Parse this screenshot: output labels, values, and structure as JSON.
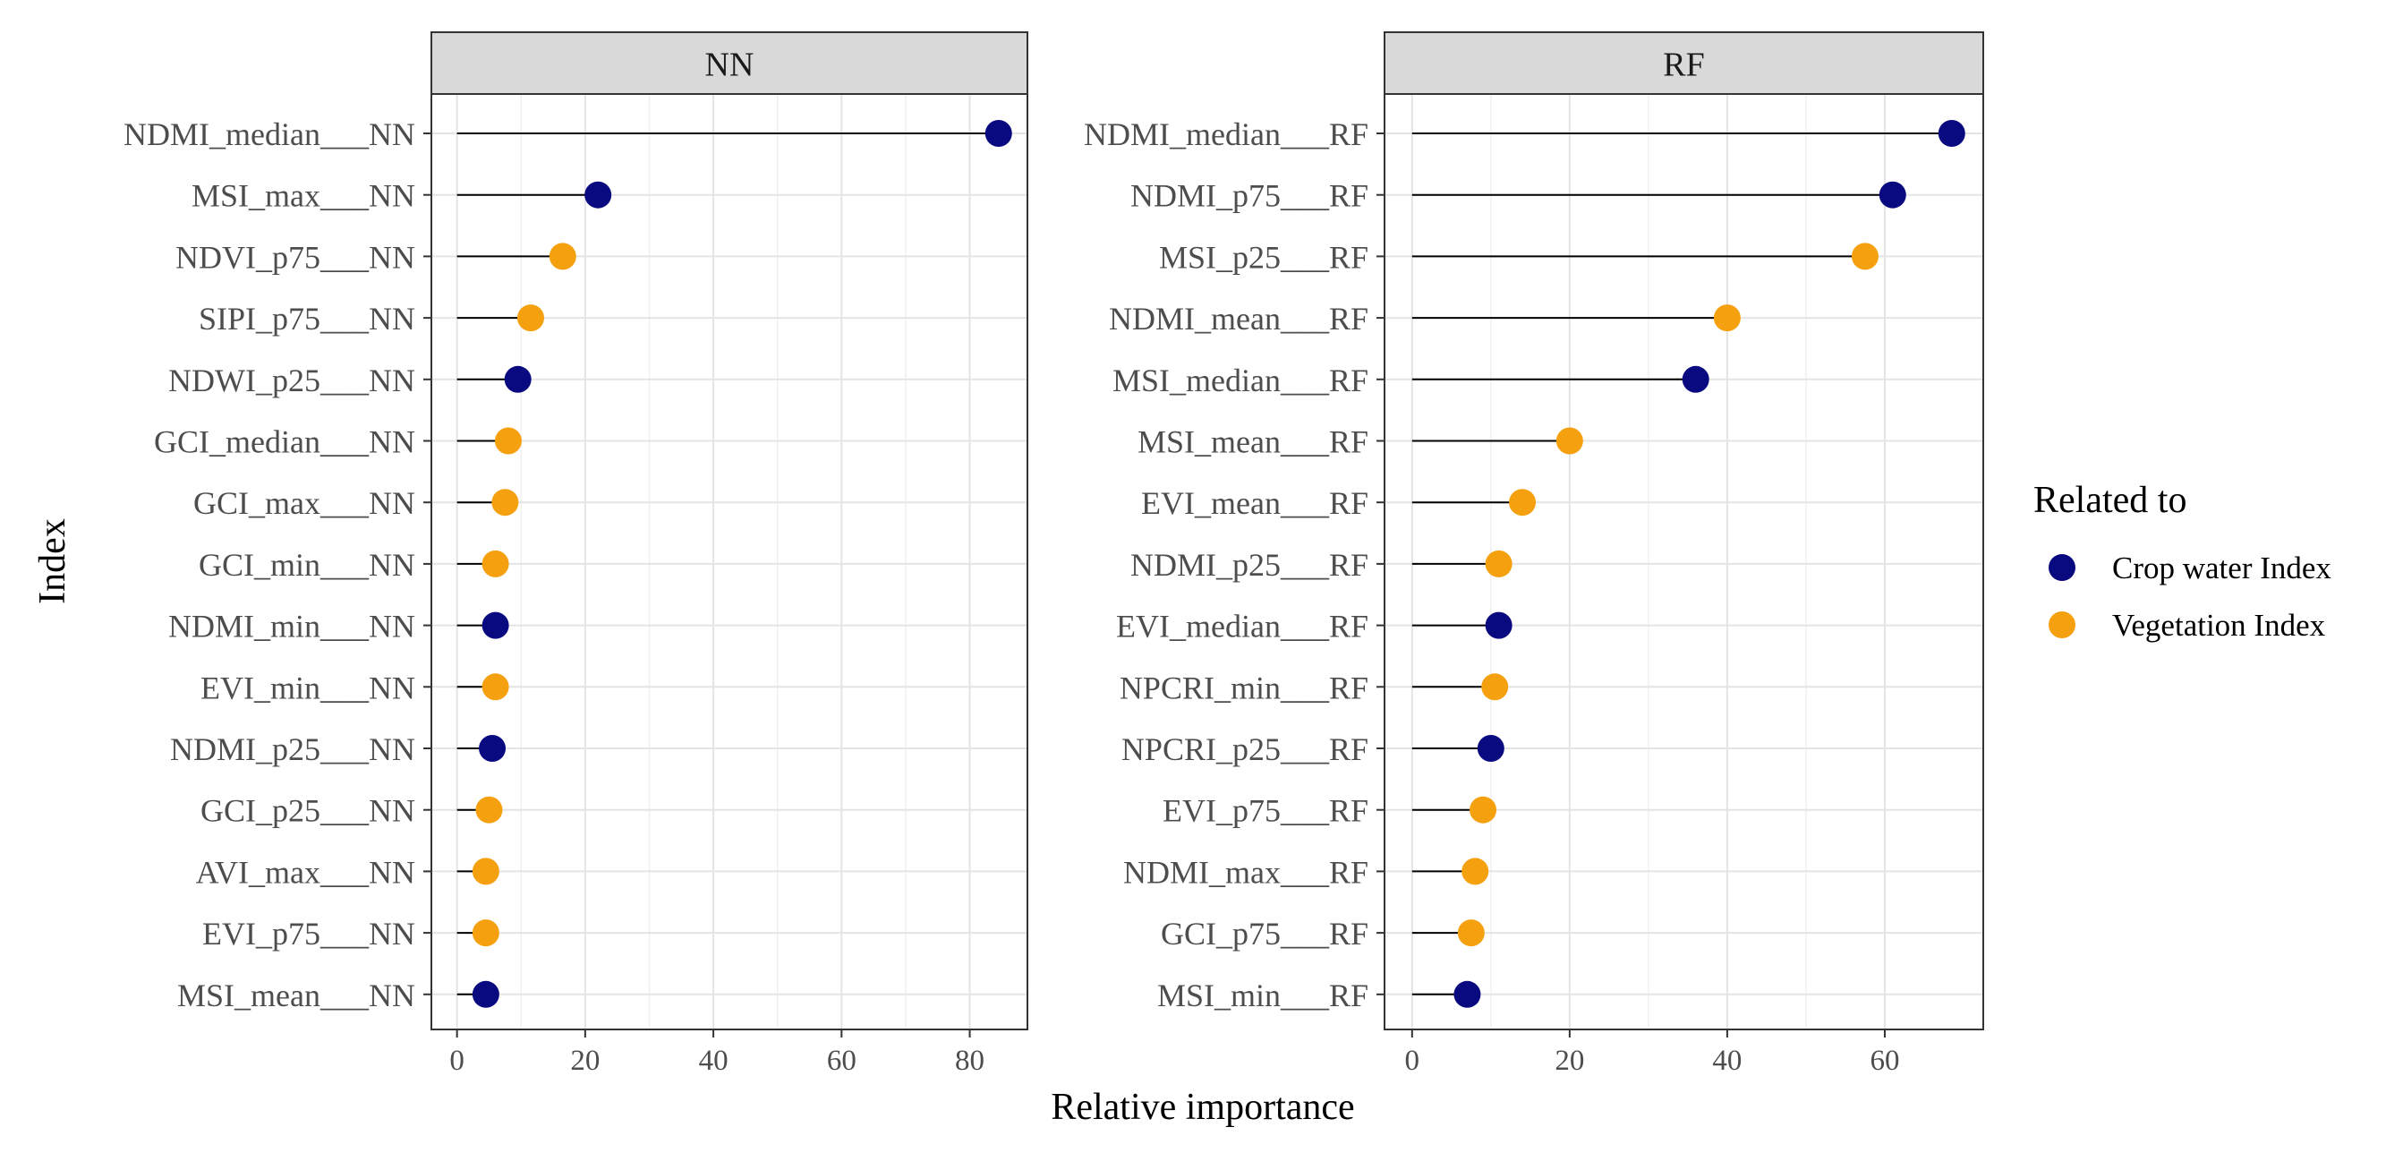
{
  "chart_data": {
    "type": "lollipop",
    "xlabel": "Relative importance",
    "ylabel": "Index",
    "legend": {
      "title": "Related to",
      "position": "right",
      "entries": [
        {
          "label": "Crop water Index",
          "color": "#0a0a80"
        },
        {
          "label": "Vegetation Index",
          "color": "#f5a00f"
        }
      ]
    },
    "grid": true,
    "panels": [
      {
        "title": "NN",
        "xlim": [
          -4,
          89
        ],
        "xticks": [
          0,
          20,
          40,
          60,
          80
        ],
        "points": [
          {
            "label": "NDMI_median___NN",
            "value": 84.5,
            "group": "Crop water Index"
          },
          {
            "label": "MSI_max___NN",
            "value": 22,
            "group": "Crop water Index"
          },
          {
            "label": "NDVI_p75___NN",
            "value": 16.5,
            "group": "Vegetation Index"
          },
          {
            "label": "SIPI_p75___NN",
            "value": 11.5,
            "group": "Vegetation Index"
          },
          {
            "label": "NDWI_p25___NN",
            "value": 9.5,
            "group": "Crop water Index"
          },
          {
            "label": "GCI_median___NN",
            "value": 8,
            "group": "Vegetation Index"
          },
          {
            "label": "GCI_max___NN",
            "value": 7.5,
            "group": "Vegetation Index"
          },
          {
            "label": "GCI_min___NN",
            "value": 6,
            "group": "Vegetation Index"
          },
          {
            "label": "NDMI_min___NN",
            "value": 6,
            "group": "Crop water Index"
          },
          {
            "label": "EVI_min___NN",
            "value": 6,
            "group": "Vegetation Index"
          },
          {
            "label": "NDMI_p25___NN",
            "value": 5.5,
            "group": "Crop water Index"
          },
          {
            "label": "GCI_p25___NN",
            "value": 5,
            "group": "Vegetation Index"
          },
          {
            "label": "AVI_max___NN",
            "value": 4.5,
            "group": "Vegetation Index"
          },
          {
            "label": "EVI_p75___NN",
            "value": 4.5,
            "group": "Vegetation Index"
          },
          {
            "label": "MSI_mean___NN",
            "value": 4.5,
            "group": "Crop water Index"
          }
        ]
      },
      {
        "title": "RF",
        "xlim": [
          -3.5,
          72.5
        ],
        "xticks": [
          0,
          20,
          40,
          60
        ],
        "points": [
          {
            "label": "NDMI_median___RF",
            "value": 68.5,
            "group": "Crop water Index"
          },
          {
            "label": "NDMI_p75___RF",
            "value": 61,
            "group": "Crop water Index"
          },
          {
            "label": "MSI_p25___RF",
            "value": 57.5,
            "group": "Vegetation Index"
          },
          {
            "label": "NDMI_mean___RF",
            "value": 40,
            "group": "Vegetation Index"
          },
          {
            "label": "MSI_median___RF",
            "value": 36,
            "group": "Crop water Index"
          },
          {
            "label": "MSI_mean___RF",
            "value": 20,
            "group": "Vegetation Index"
          },
          {
            "label": "EVI_mean___RF",
            "value": 14,
            "group": "Vegetation Index"
          },
          {
            "label": "NDMI_p25___RF",
            "value": 11,
            "group": "Vegetation Index"
          },
          {
            "label": "EVI_median___RF",
            "value": 11,
            "group": "Crop water Index"
          },
          {
            "label": "NPCRI_min___RF",
            "value": 10.5,
            "group": "Vegetation Index"
          },
          {
            "label": "NPCRI_p25___RF",
            "value": 10,
            "group": "Crop water Index"
          },
          {
            "label": "EVI_p75___RF",
            "value": 9,
            "group": "Vegetation Index"
          },
          {
            "label": "NDMI_max___RF",
            "value": 8,
            "group": "Vegetation Index"
          },
          {
            "label": "GCI_p75___RF",
            "value": 7.5,
            "group": "Vegetation Index"
          },
          {
            "label": "MSI_min___RF",
            "value": 7,
            "group": "Crop water Index"
          }
        ]
      }
    ]
  }
}
